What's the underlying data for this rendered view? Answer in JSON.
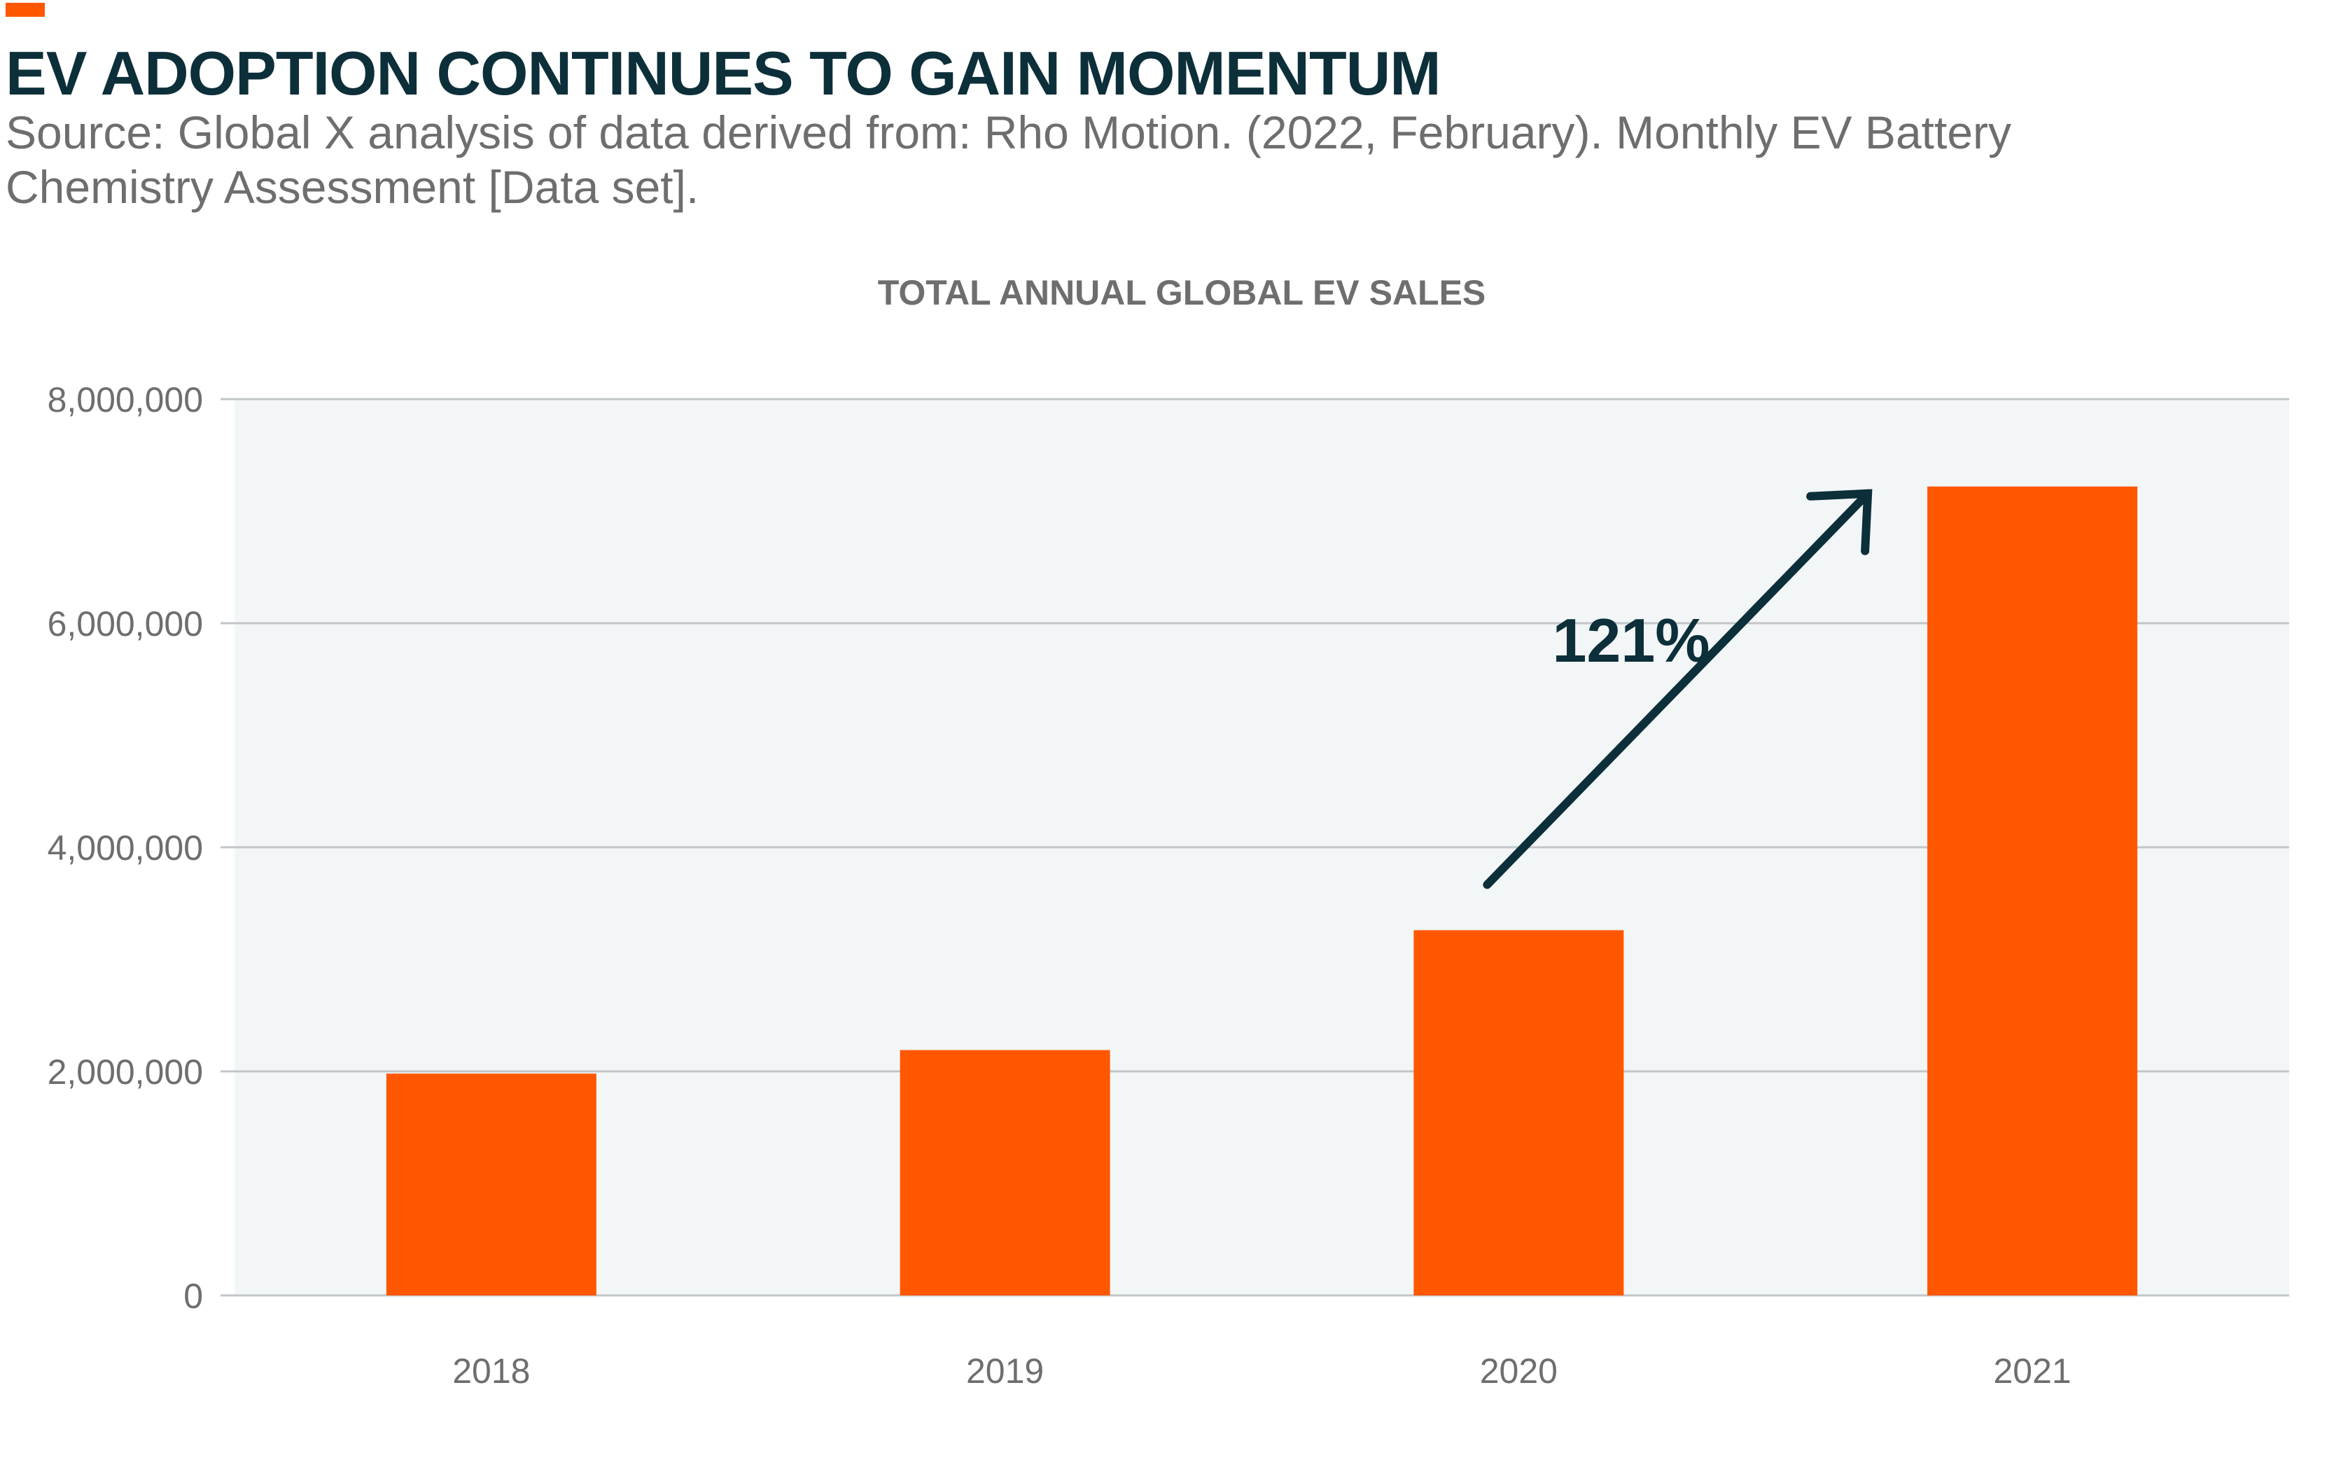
{
  "header": {
    "title": "EV ADOPTION CONTINUES TO GAIN MOMENTUM",
    "subtitle": "Source: Global X analysis of data derived from: Rho Motion. (2022, February). Monthly EV Battery Chemistry Assessment [Data set]."
  },
  "colors": {
    "accent": "#ff5700",
    "title": "#0c2f3a",
    "plot_background": "#f2f6f7",
    "gridline": "#c2c6c8",
    "axis_text": "#6e6e6e",
    "arrow": "#0c2f3a"
  },
  "chart_data": {
    "type": "bar",
    "title": "TOTAL ANNUAL GLOBAL EV SALES",
    "xlabel": "",
    "ylabel": "",
    "categories": [
      "2018",
      "2019",
      "2020",
      "2021"
    ],
    "values": [
      1980000,
      2190000,
      3260000,
      7220000
    ],
    "ylim": [
      0,
      8000000
    ],
    "yticks": [
      0,
      2000000,
      4000000,
      6000000,
      8000000
    ],
    "ytick_labels": [
      "0",
      "2,000,000",
      "4,000,000",
      "6,000,000",
      "8,000,000"
    ],
    "grid": true,
    "legend": "none",
    "annotation": {
      "text": "121%",
      "from_category": "2020",
      "to_category": "2021"
    }
  }
}
